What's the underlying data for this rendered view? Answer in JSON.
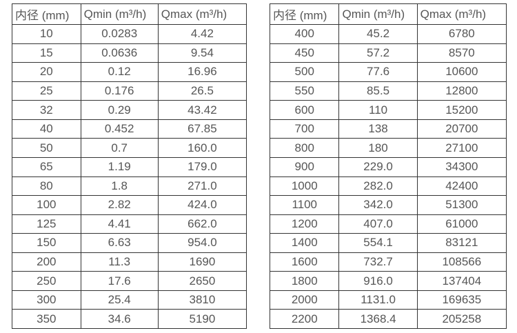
{
  "colors": {
    "background": "#ffffff",
    "border": "#333333",
    "text": "#565656"
  },
  "tables": [
    {
      "name": "flow-range-table-small-diameters",
      "headers": [
        "内径 (mm)",
        "Qmin (m³/h)",
        "Qmax (m³/h)"
      ],
      "rows": [
        [
          "10",
          "0.0283",
          "4.42"
        ],
        [
          "15",
          "0.0636",
          "9.54"
        ],
        [
          "20",
          "0.12",
          "16.96"
        ],
        [
          "25",
          "0.176",
          "26.5"
        ],
        [
          "32",
          "0.29",
          "43.42"
        ],
        [
          "40",
          "0.452",
          "67.85"
        ],
        [
          "50",
          "0.7",
          "160.0"
        ],
        [
          "65",
          "1.19",
          "179.0"
        ],
        [
          "80",
          "1.8",
          "271.0"
        ],
        [
          "100",
          "2.82",
          "424.0"
        ],
        [
          "125",
          "4.41",
          "662.0"
        ],
        [
          "150",
          "6.63",
          "954.0"
        ],
        [
          "200",
          "11.3",
          "1690"
        ],
        [
          "250",
          "17.6",
          "2650"
        ],
        [
          "300",
          "25.4",
          "3810"
        ],
        [
          "350",
          "34.6",
          "5190"
        ]
      ]
    },
    {
      "name": "flow-range-table-large-diameters",
      "headers": [
        "内径 (mm)",
        "Qmin (m³/h)",
        "Qmax (m³/h)"
      ],
      "rows": [
        [
          "400",
          "45.2",
          "6780"
        ],
        [
          "450",
          "57.2",
          "8570"
        ],
        [
          "500",
          "77.6",
          "10600"
        ],
        [
          "550",
          "85.5",
          "12800"
        ],
        [
          "600",
          "110",
          "15200"
        ],
        [
          "700",
          "138",
          "20700"
        ],
        [
          "800",
          "180",
          "27100"
        ],
        [
          "900",
          "229.0",
          "34300"
        ],
        [
          "1000",
          "282.0",
          "42400"
        ],
        [
          "1100",
          "342.0",
          "51300"
        ],
        [
          "1200",
          "407.0",
          "61000"
        ],
        [
          "1400",
          "554.1",
          "83121"
        ],
        [
          "1600",
          "732.7",
          "108566"
        ],
        [
          "1800",
          "916.0",
          "137404"
        ],
        [
          "2000",
          "1131.0",
          "169635"
        ],
        [
          "2200",
          "1368.4",
          "205258"
        ]
      ]
    }
  ]
}
